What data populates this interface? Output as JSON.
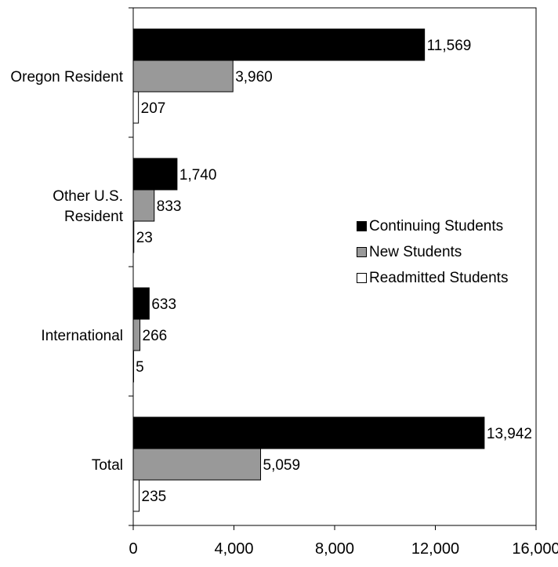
{
  "chart_data": {
    "type": "bar",
    "orientation": "horizontal",
    "categories": [
      "Oregon Resident",
      "Other U.S. Resident",
      "International",
      "Total"
    ],
    "category_label_lines": [
      [
        "Oregon Resident"
      ],
      [
        "Other U.S.",
        "Resident"
      ],
      [
        "International"
      ],
      [
        "Total"
      ]
    ],
    "series": [
      {
        "name": "Continuing Students",
        "values": [
          11569,
          1740,
          633,
          13942
        ],
        "labels": [
          "11,569",
          "1,740",
          "633",
          "13,942"
        ],
        "color": "#000000"
      },
      {
        "name": "New Students",
        "values": [
          3960,
          833,
          266,
          5059
        ],
        "labels": [
          "3,960",
          "833",
          "266",
          "5,059"
        ],
        "color": "#999999"
      },
      {
        "name": "Readmitted Students",
        "values": [
          207,
          23,
          5,
          235
        ],
        "labels": [
          "207",
          "23",
          "5",
          "235"
        ],
        "color": "#ffffff"
      }
    ],
    "xlim": [
      0,
      16000
    ],
    "x_ticks": [
      0,
      4000,
      8000,
      12000,
      16000
    ],
    "x_tick_labels": [
      "0",
      "4,000",
      "8,000",
      "12,000",
      "16,000"
    ],
    "grid": false,
    "legend": {
      "placement": "right"
    }
  }
}
